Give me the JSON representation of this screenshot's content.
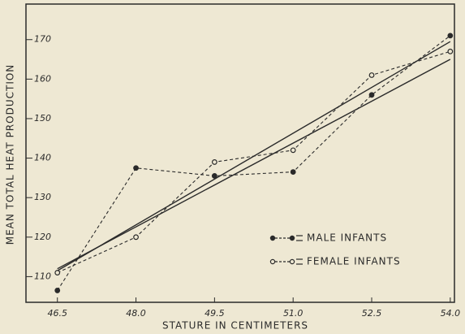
{
  "chart_data": {
    "type": "line",
    "x_label": "STATURE IN CENTIMETERS",
    "y_label": "MEAN TOTAL HEAT PRODUCTION",
    "x": [
      46.5,
      48.0,
      49.5,
      51.0,
      52.5,
      54.0
    ],
    "series": [
      {
        "name": "MALE INFANTS",
        "color": "#2a2a2a",
        "values": [
          106.5,
          137.5,
          135.5,
          136.5,
          156,
          171
        ]
      },
      {
        "name": "FEMALE INFANTS",
        "color": "#2a2a2a",
        "values": [
          111,
          120,
          139,
          142,
          161,
          167
        ]
      }
    ],
    "trend_lines": [
      {
        "color": "#2a2a2a",
        "values": [
          111.5,
          169.5
        ]
      },
      {
        "color": "#2a2a2a",
        "values": [
          112,
          165
        ]
      }
    ],
    "xlim": [
      45.9,
      54.08
    ],
    "ylim": [
      103.5,
      179
    ],
    "xticks": [
      46.5,
      {
        "value": 48.0,
        "label": "48.0"
      },
      49.5,
      {
        "value": 51.0,
        "label": "51.0"
      },
      52.5,
      {
        "value": 54.0,
        "label": "54.0"
      }
    ],
    "yticks": [
      110,
      120,
      130,
      140,
      150,
      160,
      170
    ]
  }
}
